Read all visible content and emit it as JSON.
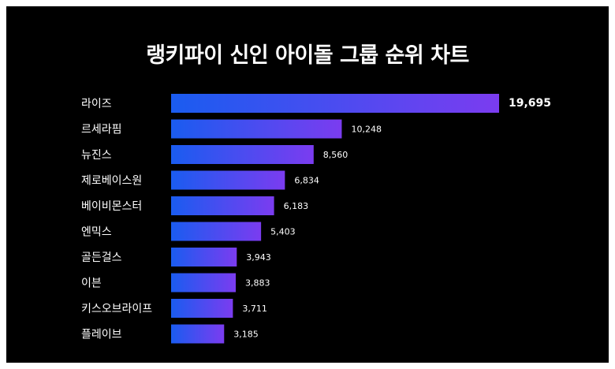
{
  "colors": {
    "background": "#000000",
    "frame": "#ffffff",
    "text": "#ffffff",
    "bar_gradient_start": "#1a5cf0",
    "bar_gradient_end": "#7b3cf0"
  },
  "chart_data": {
    "type": "bar",
    "orientation": "horizontal",
    "title": "랭키파이 신인 아이돌 그룹 순위 차트",
    "categories": [
      "라이즈",
      "르세라핌",
      "뉴진스",
      "제로베이스원",
      "베이비몬스터",
      "엔믹스",
      "골든걸스",
      "이븐",
      "키스오브라이프",
      "플레이브"
    ],
    "values": [
      19695,
      10248,
      8560,
      6834,
      6183,
      5403,
      3943,
      3883,
      3711,
      3185
    ],
    "value_labels": [
      "19,695",
      "10,248",
      "8,560",
      "6,834",
      "6,183",
      "5,403",
      "3,943",
      "3,883",
      "3,711",
      "3,185"
    ],
    "xlim": [
      0,
      19695
    ],
    "grid": false,
    "legend": "none",
    "xlabel": "",
    "ylabel": ""
  }
}
